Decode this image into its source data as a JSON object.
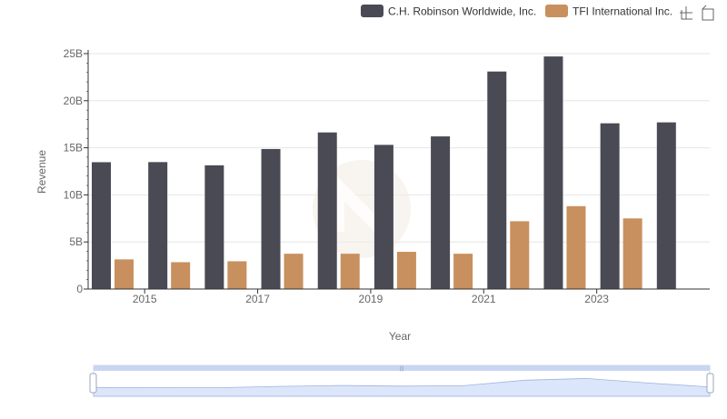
{
  "chart_data": {
    "type": "bar",
    "title": "",
    "xlabel": "Year",
    "ylabel": "Revenue",
    "ylim": [
      0,
      25000000000
    ],
    "y_ticks": [
      "0",
      "5B",
      "10B",
      "15B",
      "20B",
      "25B"
    ],
    "x_tick_labels": [
      "2015",
      "2017",
      "2019",
      "2021",
      "2023"
    ],
    "categories": [
      "2014",
      "2015",
      "2016",
      "2017",
      "2018",
      "2019",
      "2020",
      "2021",
      "2022",
      "2023",
      "2024"
    ],
    "series": [
      {
        "name": "C.H. Robinson Worldwide, Inc.",
        "color": "#4a4a55",
        "values": [
          13470000000,
          13480000000,
          13140000000,
          14870000000,
          16630000000,
          15310000000,
          16210000000,
          23100000000,
          24700000000,
          17600000000,
          17700000000
        ]
      },
      {
        "name": "TFI International Inc.",
        "color": "#c8905e",
        "values": [
          3150000000,
          2850000000,
          2950000000,
          3750000000,
          3750000000,
          3950000000,
          3750000000,
          7200000000,
          8800000000,
          7500000000,
          null
        ]
      }
    ],
    "legend_position": "top-right",
    "grid": true
  },
  "toolbar": {
    "icons": [
      "zoom-icon",
      "reset-zoom-icon"
    ]
  },
  "colors": {
    "grid": "#e6e6e6",
    "axis": "#333333",
    "slider_fill": "#dce6fa",
    "slider_border": "#b4c3e6"
  }
}
